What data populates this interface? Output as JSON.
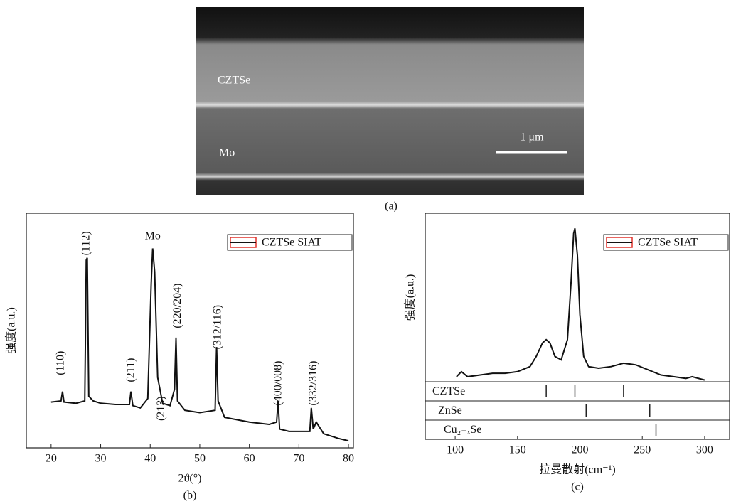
{
  "image": {
    "layers": [
      "CZTSe",
      "Mo"
    ],
    "scale_bar": "1 μm",
    "caption": "(a)"
  },
  "chart_data": [
    {
      "type": "line",
      "caption": "(b)",
      "xlabel": "2ϑ(°)",
      "ylabel": "强度(a.u.)",
      "xlim": [
        15,
        81
      ],
      "xticks": [
        20,
        30,
        40,
        50,
        60,
        70,
        80
      ],
      "ylim": [
        0,
        100
      ],
      "legend": "upper right",
      "legend_swatch": "#e0302a",
      "x": [
        20,
        22,
        22.3,
        22.6,
        25,
        26.8,
        27.1,
        27.3,
        27.6,
        28.5,
        30,
        33,
        35.8,
        36.1,
        36.5,
        38,
        39.5,
        40.2,
        40.5,
        40.9,
        41.5,
        42.5,
        44,
        44.9,
        45.2,
        45.5,
        47,
        50,
        53.1,
        53.4,
        53.7,
        55,
        60,
        64,
        65.5,
        65.8,
        66.1,
        68,
        72.2,
        72.5,
        72.9,
        73.5,
        75,
        78,
        80
      ],
      "series": [
        {
          "name": "CZTSe SIAT",
          "color": "#111111",
          "values": [
            19.5,
            20,
            24,
            19.5,
            19,
            20,
            80,
            81,
            22,
            20,
            19,
            18.5,
            18.5,
            24,
            18,
            17,
            21,
            70,
            85,
            75,
            30,
            19,
            18,
            25,
            47,
            20,
            16,
            15,
            16,
            43,
            20,
            13,
            11,
            10,
            11,
            20,
            8,
            7,
            7,
            17,
            8,
            11,
            6,
            4,
            3
          ]
        }
      ],
      "annotations": [
        {
          "text": "(110)",
          "x": 22,
          "y": 31,
          "rotation": 90
        },
        {
          "text": "(112)",
          "x": 27.2,
          "y": 82,
          "rotation": 90
        },
        {
          "text": "Mo",
          "x": 40.5,
          "y": 90,
          "rotation": 0
        },
        {
          "text": "(211)",
          "x": 36.2,
          "y": 28,
          "rotation": 90
        },
        {
          "text": "(213)",
          "x": 42.3,
          "y": 11.5,
          "rotation": 90
        },
        {
          "text": "(220/204)",
          "x": 45.6,
          "y": 51,
          "rotation": 90
        },
        {
          "text": "(312/116)",
          "x": 53.7,
          "y": 42,
          "rotation": 90
        },
        {
          "text": "(400/008)",
          "x": 65.9,
          "y": 18,
          "rotation": 90
        },
        {
          "text": "(332/316)",
          "x": 73,
          "y": 18,
          "rotation": 90
        }
      ]
    },
    {
      "type": "line",
      "caption": "(c)",
      "xlabel": "拉曼散射(cm⁻¹)",
      "ylabel": "强度(a.u.)",
      "xlim": [
        76,
        320
      ],
      "xticks": [
        100,
        150,
        200,
        250,
        300
      ],
      "ylim": [
        0,
        100
      ],
      "legend": "upper right",
      "legend_swatch": "#e0302a",
      "x": [
        101,
        105,
        110,
        120,
        130,
        140,
        150,
        160,
        165,
        170,
        173,
        176,
        180,
        185,
        190,
        193,
        195,
        196,
        198,
        200,
        203,
        207,
        215,
        225,
        235,
        245,
        255,
        265,
        275,
        285,
        290,
        300
      ],
      "series": [
        {
          "name": "CZTSe SIAT",
          "color": "#111111",
          "values": [
            3,
            6,
            3,
            4,
            5,
            5,
            6,
            9,
            15,
            23,
            25,
            23,
            15,
            13,
            25,
            60,
            88,
            91,
            75,
            40,
            15,
            9,
            8,
            9,
            11,
            10,
            7,
            4,
            3,
            2,
            3,
            1
          ]
        }
      ],
      "references": [
        {
          "name": "CZTSe",
          "lines": [
            173,
            196,
            235
          ]
        },
        {
          "name": "ZnSe",
          "lines": [
            205,
            256
          ]
        },
        {
          "name": "Cu₂₋ₓSe",
          "lines": [
            261
          ]
        }
      ]
    }
  ]
}
